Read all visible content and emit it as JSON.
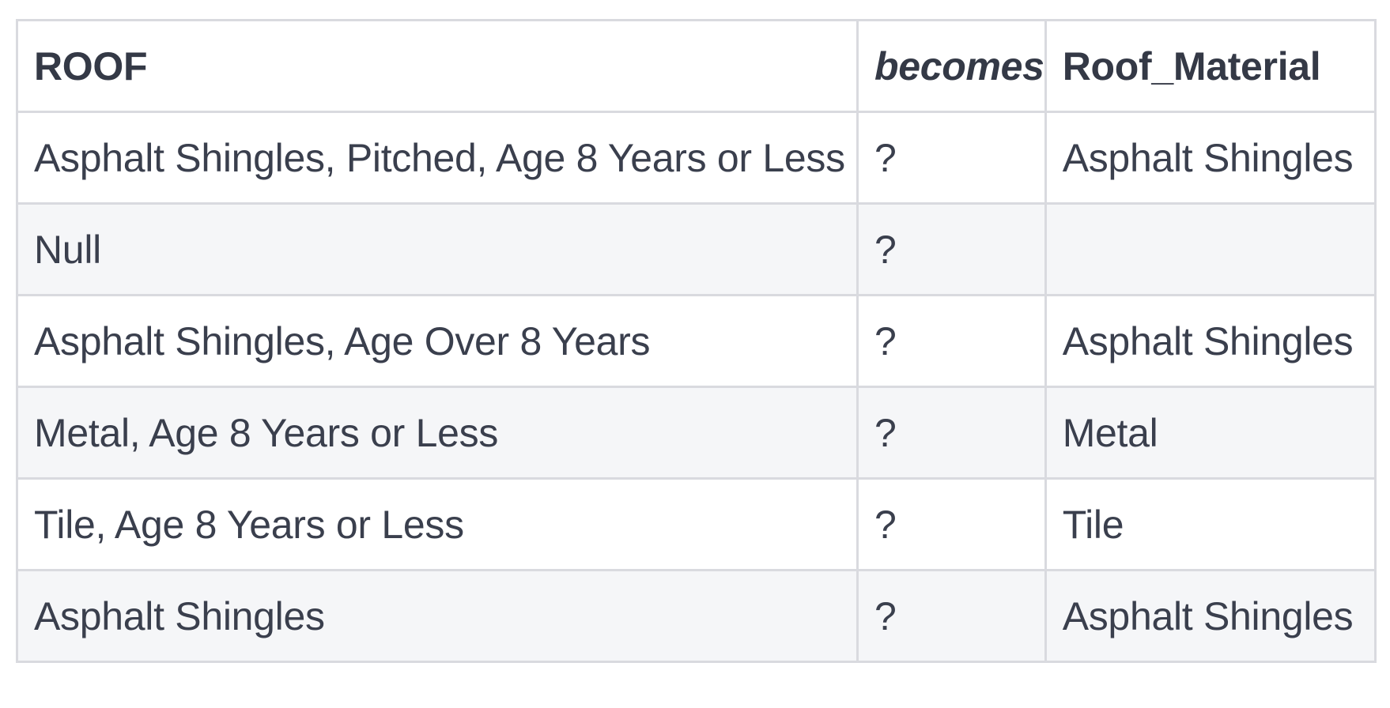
{
  "table": {
    "headers": [
      "ROOF",
      "becomes",
      "Roof_Material"
    ],
    "rows": [
      [
        "Asphalt Shingles, Pitched, Age 8 Years or Less",
        "?",
        "Asphalt Shingles"
      ],
      [
        "Null",
        "?",
        ""
      ],
      [
        "Asphalt Shingles, Age Over 8 Years",
        "?",
        "Asphalt Shingles"
      ],
      [
        "Metal, Age 8 Years or Less",
        "?",
        "Metal"
      ],
      [
        "Tile, Age 8 Years or Less",
        "?",
        "Tile"
      ],
      [
        "Asphalt Shingles",
        "?",
        "Asphalt Shingles"
      ]
    ]
  }
}
